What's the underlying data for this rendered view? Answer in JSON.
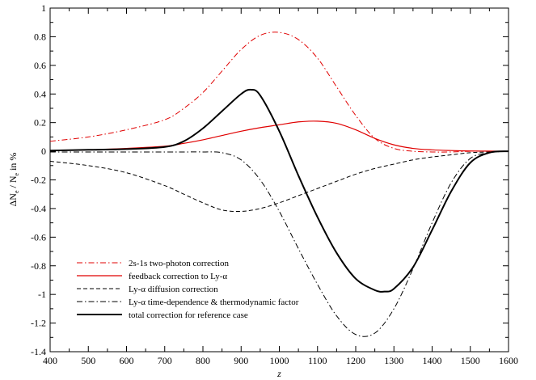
{
  "chart_data": {
    "type": "line",
    "title": "",
    "xlabel": "z",
    "ylabel_parts": [
      "ΔN",
      "e",
      " / N",
      "e",
      " in %"
    ],
    "xlim": [
      400,
      1600
    ],
    "ylim": [
      -1.4,
      1.0
    ],
    "xticks": [
      400,
      500,
      600,
      700,
      800,
      900,
      1000,
      1100,
      1200,
      1300,
      1400,
      1500,
      1600
    ],
    "yticks": [
      -1.4,
      -1.2,
      -1,
      -0.8,
      -0.6,
      -0.4,
      -0.2,
      0,
      0.2,
      0.4,
      0.6,
      0.8,
      1
    ],
    "xtick_labels": [
      "400",
      "500",
      "600",
      "700",
      "800",
      "900",
      "1000",
      "1100",
      "1200",
      "1300",
      "1400",
      "1500",
      "1600"
    ],
    "ytick_labels": [
      "-1.4",
      "-1.2",
      "-1",
      "-0.8",
      "-0.6",
      "-0.4",
      "-0.2",
      "0",
      "0.2",
      "0.4",
      "0.6",
      "0.8",
      "1"
    ],
    "grid": false,
    "legend_position": "bottom-left",
    "series": [
      {
        "name": "2s-1s two-photon correction",
        "color": "#e00000",
        "dash": "dashdot",
        "width": 1,
        "x": [
          400,
          500,
          600,
          700,
          750,
          800,
          850,
          900,
          950,
          1000,
          1050,
          1100,
          1150,
          1200,
          1250,
          1300,
          1350,
          1400,
          1450,
          1500,
          1550,
          1600
        ],
        "y": [
          0.07,
          0.1,
          0.15,
          0.22,
          0.3,
          0.41,
          0.56,
          0.71,
          0.81,
          0.83,
          0.78,
          0.65,
          0.45,
          0.25,
          0.09,
          0.02,
          0.0,
          -0.005,
          -0.005,
          0.0,
          0.0,
          0.0
        ]
      },
      {
        "name": "feedback correction to Ly-α",
        "color": "#e00000",
        "dash": "solid",
        "width": 1.2,
        "x": [
          400,
          500,
          600,
          700,
          750,
          800,
          850,
          900,
          950,
          1000,
          1050,
          1100,
          1150,
          1200,
          1250,
          1300,
          1350,
          1400,
          1450,
          1500,
          1550,
          1600
        ],
        "y": [
          0.005,
          0.01,
          0.02,
          0.035,
          0.055,
          0.08,
          0.11,
          0.14,
          0.165,
          0.185,
          0.205,
          0.21,
          0.195,
          0.15,
          0.09,
          0.045,
          0.02,
          0.01,
          0.005,
          0.002,
          0.001,
          0.0
        ]
      },
      {
        "name": "Ly-α diffusion correction",
        "color": "#000000",
        "dash": "dashed",
        "width": 1,
        "x": [
          400,
          500,
          600,
          700,
          750,
          800,
          850,
          900,
          950,
          1000,
          1050,
          1100,
          1150,
          1200,
          1250,
          1300,
          1350,
          1400,
          1450,
          1500,
          1550,
          1600
        ],
        "y": [
          -0.07,
          -0.1,
          -0.15,
          -0.24,
          -0.3,
          -0.36,
          -0.41,
          -0.42,
          -0.4,
          -0.36,
          -0.31,
          -0.26,
          -0.21,
          -0.16,
          -0.12,
          -0.09,
          -0.06,
          -0.04,
          -0.025,
          -0.01,
          -0.005,
          0.0
        ]
      },
      {
        "name": "Ly-α time-dependence & thermodynamic factor",
        "color": "#000000",
        "dash": "dashdot",
        "width": 1,
        "x": [
          400,
          500,
          600,
          700,
          750,
          800,
          850,
          900,
          950,
          1000,
          1050,
          1100,
          1150,
          1200,
          1250,
          1300,
          1350,
          1400,
          1450,
          1500,
          1550,
          1600
        ],
        "y": [
          -0.005,
          -0.005,
          -0.005,
          -0.005,
          -0.005,
          -0.005,
          -0.01,
          -0.06,
          -0.2,
          -0.42,
          -0.68,
          -0.93,
          -1.15,
          -1.28,
          -1.27,
          -1.1,
          -0.82,
          -0.5,
          -0.22,
          -0.05,
          -0.01,
          0.0
        ]
      },
      {
        "name": "total correction for reference case",
        "color": "#000000",
        "dash": "solid",
        "width": 2,
        "x": [
          400,
          500,
          600,
          700,
          750,
          800,
          850,
          900,
          925,
          950,
          1000,
          1050,
          1100,
          1150,
          1200,
          1250,
          1275,
          1300,
          1350,
          1400,
          1450,
          1500,
          1550,
          1600
        ],
        "y": [
          0.005,
          0.01,
          0.015,
          0.03,
          0.07,
          0.16,
          0.28,
          0.4,
          0.43,
          0.39,
          0.14,
          -0.17,
          -0.46,
          -0.71,
          -0.89,
          -0.97,
          -0.98,
          -0.96,
          -0.81,
          -0.55,
          -0.28,
          -0.08,
          -0.01,
          0.0
        ]
      }
    ]
  }
}
